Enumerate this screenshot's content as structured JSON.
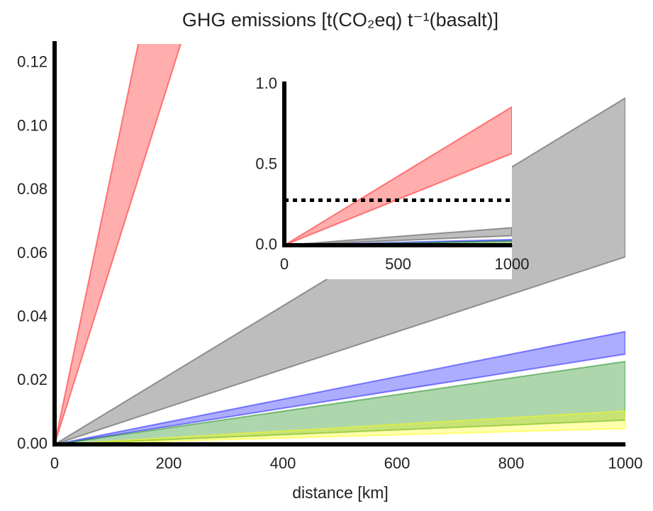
{
  "chart_data": {
    "type": "band",
    "title": "GHG emissions [t(CO₂eq) t⁻¹(basalt)]",
    "xlabel": "distance [km]",
    "x": [
      0,
      1000
    ],
    "xlim": [
      0,
      1000
    ],
    "ylim": [
      0,
      0.126
    ],
    "xticks": [
      0,
      200,
      400,
      600,
      800,
      1000
    ],
    "yticks": [
      {
        "value": 0,
        "label": "0.00"
      },
      {
        "value": 0.02,
        "label": "0.02"
      },
      {
        "value": 0.04,
        "label": "0.04"
      },
      {
        "value": 0.06,
        "label": "0.06"
      },
      {
        "value": 0.08,
        "label": "0.08"
      },
      {
        "value": 0.1,
        "label": "0.10"
      },
      {
        "value": 0.12,
        "label": "0.12"
      }
    ],
    "series": [
      {
        "color": "#ff0000",
        "lower": [
          0,
          0.57
        ],
        "upper": [
          0,
          0.86
        ]
      },
      {
        "color": "#333333",
        "lower": [
          0,
          0.059
        ],
        "upper": [
          0,
          0.109
        ]
      },
      {
        "color": "#0000ff",
        "lower": [
          0,
          0.0284
        ],
        "upper": [
          0,
          0.0355
        ]
      },
      {
        "color": "#008000",
        "lower": [
          0,
          0.0076
        ],
        "upper": [
          0,
          0.0261
        ]
      },
      {
        "color": "#ffff00",
        "lower": [
          0,
          0.005
        ],
        "upper": [
          0,
          0.0105
        ]
      }
    ],
    "inset": {
      "xlim": [
        0,
        1000
      ],
      "ylim": [
        0,
        1.0
      ],
      "xticks": [
        0,
        500,
        1000
      ],
      "yticks": [
        {
          "value": 0,
          "label": "0.0"
        },
        {
          "value": 0.5,
          "label": "0.5"
        },
        {
          "value": 1.0,
          "label": "1.0"
        }
      ],
      "hline": 0.28
    }
  }
}
